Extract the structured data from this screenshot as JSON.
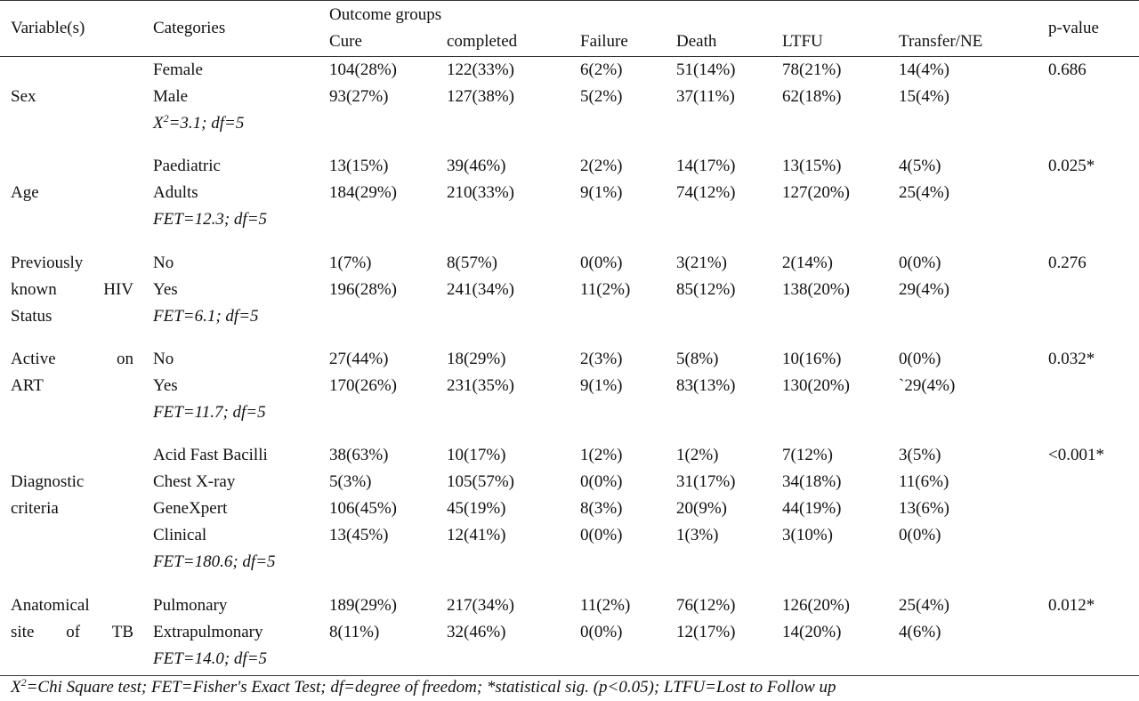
{
  "table": {
    "headers": {
      "variable": "Variable(s)",
      "categories": "Categories",
      "outcome_groups": "Outcome groups",
      "outcomes": [
        "Cure",
        "completed",
        "Failure",
        "Death",
        "LTFU",
        "Transfer/NE"
      ],
      "pvalue": "p-value"
    },
    "groups": [
      {
        "variable_lines": [
          "",
          "Sex",
          ""
        ],
        "rows": [
          {
            "category": "Female",
            "values": [
              "104(28%)",
              "122(33%)",
              "6(2%)",
              "51(14%)",
              "78(21%)",
              "14(4%)"
            ]
          },
          {
            "category": "Male",
            "values": [
              "93(27%)",
              "127(38%)",
              "5(2%)",
              "37(11%)",
              "62(18%)",
              "15(4%)"
            ]
          }
        ],
        "stat_prefix": "X",
        "stat_sup": "2",
        "stat_rest": "=3.1; df=5",
        "pvalue": "0.686"
      },
      {
        "variable_lines": [
          "",
          "Age",
          ""
        ],
        "rows": [
          {
            "category": "Paediatric",
            "values": [
              "13(15%)",
              "39(46%)",
              "2(2%)",
              "14(17%)",
              "13(15%)",
              "4(5%)"
            ]
          },
          {
            "category": "Adults",
            "values": [
              "184(29%)",
              "210(33%)",
              "9(1%)",
              "74(12%)",
              "127(20%)",
              "25(4%)"
            ]
          }
        ],
        "stat_prefix": "",
        "stat_sup": "",
        "stat_rest": "FET=12.3; df=5",
        "pvalue": "0.025*"
      },
      {
        "variable_lines": [
          "Previously",
          "known HIV",
          "Status"
        ],
        "rows": [
          {
            "category": "No",
            "values": [
              "1(7%)",
              "8(57%)",
              "0(0%)",
              "3(21%)",
              "2(14%)",
              "0(0%)"
            ]
          },
          {
            "category": "Yes",
            "values": [
              "196(28%)",
              "241(34%)",
              "11(2%)",
              "85(12%)",
              "138(20%)",
              "29(4%)"
            ]
          }
        ],
        "stat_prefix": "",
        "stat_sup": "",
        "stat_rest": "FET=6.1; df=5",
        "pvalue": "0.276"
      },
      {
        "variable_lines": [
          "Active on",
          "ART",
          ""
        ],
        "rows": [
          {
            "category": "No",
            "values": [
              "27(44%)",
              "18(29%)",
              "2(3%)",
              "5(8%)",
              "10(16%)",
              "0(0%)"
            ]
          },
          {
            "category": "Yes",
            "values": [
              "170(26%)",
              "231(35%)",
              "9(1%)",
              "83(13%)",
              "130(20%)",
              "`29(4%)"
            ]
          }
        ],
        "stat_prefix": "",
        "stat_sup": "",
        "stat_rest": "FET=11.7; df=5",
        "pvalue": "0.032*"
      },
      {
        "variable_lines": [
          "",
          "Diagnostic",
          "criteria",
          ""
        ],
        "rows": [
          {
            "category": "Acid Fast Bacilli",
            "values": [
              "38(63%)",
              "10(17%)",
              "1(2%)",
              "1(2%)",
              "7(12%)",
              "3(5%)"
            ]
          },
          {
            "category": "Chest X-ray",
            "values": [
              "5(3%)",
              "105(57%)",
              "0(0%)",
              "31(17%)",
              "34(18%)",
              "11(6%)"
            ]
          },
          {
            "category": "GeneXpert",
            "values": [
              "106(45%)",
              "45(19%)",
              "8(3%)",
              "20(9%)",
              "44(19%)",
              "13(6%)"
            ]
          },
          {
            "category": "Clinical",
            "values": [
              "13(45%)",
              "12(41%)",
              "0(0%)",
              "1(3%)",
              "3(10%)",
              "0(0%)"
            ]
          }
        ],
        "stat_prefix": "",
        "stat_sup": "",
        "stat_rest": "FET=180.6; df=5",
        "pvalue": "<0.001*"
      },
      {
        "variable_lines": [
          "Anatomical",
          "site of TB",
          ""
        ],
        "rows": [
          {
            "category": "Pulmonary",
            "values": [
              "189(29%)",
              "217(34%)",
              "11(2%)",
              "76(12%)",
              "126(20%)",
              "25(4%)"
            ]
          },
          {
            "category": "Extrapulmonary",
            "values": [
              "8(11%)",
              "32(46%)",
              "0(0%)",
              "12(17%)",
              "14(20%)",
              "4(6%)"
            ]
          }
        ],
        "stat_prefix": "",
        "stat_sup": "",
        "stat_rest": "FET=14.0; df=5",
        "pvalue": "0.012*"
      }
    ],
    "footnote": {
      "prefix": "X",
      "sup": "2",
      "rest": "=Chi Square test; FET=Fisher's Exact Test; df=degree of freedom; *statistical sig. (p<0.05); LTFU=Lost to Follow up"
    }
  }
}
